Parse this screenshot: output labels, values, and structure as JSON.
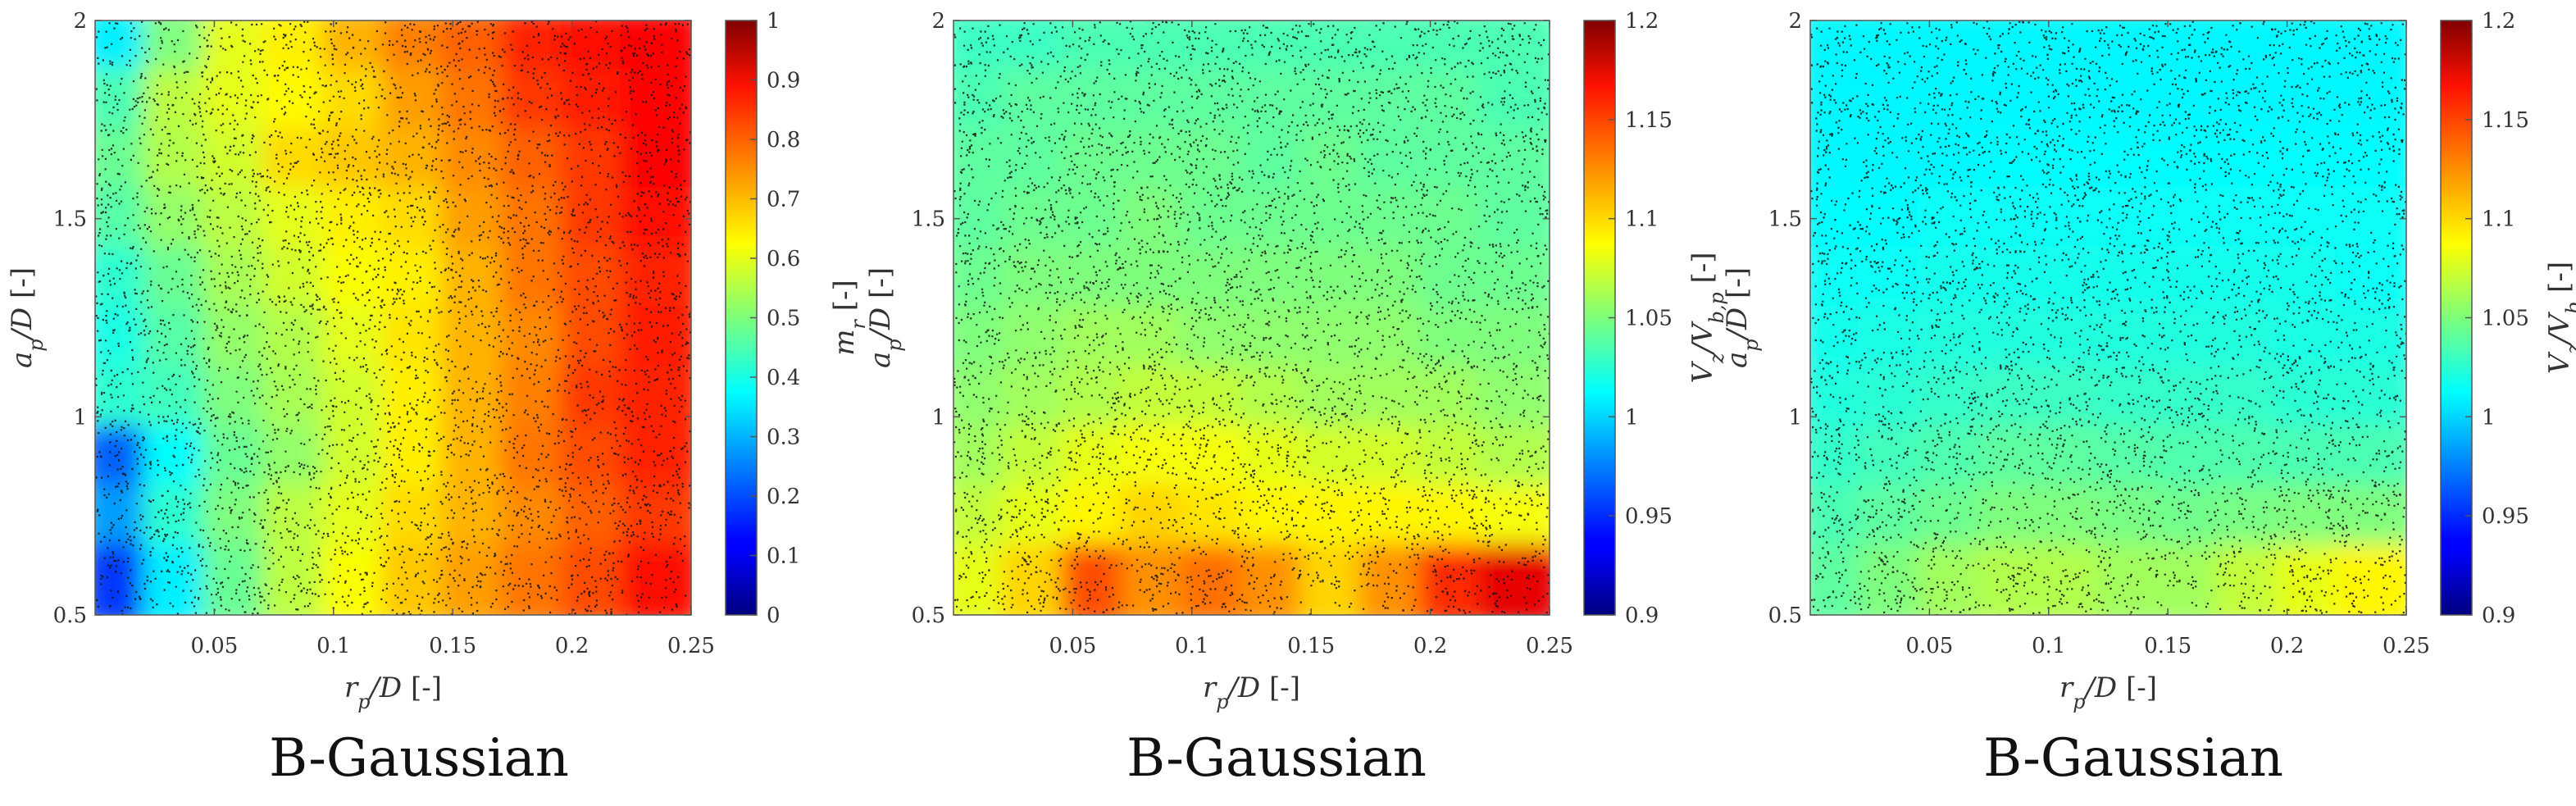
{
  "chart_data": [
    {
      "type": "heatmap",
      "xlabel": "r_p/D [-]",
      "ylabel": "a_p/D [-]",
      "colorbar_label": "m_r [-]",
      "xlim": [
        0,
        0.25
      ],
      "ylim": [
        0.5,
        2
      ],
      "clim": [
        0,
        1
      ],
      "x_ticks": [
        "0.05",
        "0.1",
        "0.15",
        "0.2",
        "0.25"
      ],
      "y_ticks": [
        "0.5",
        "1",
        "1.5",
        "2"
      ],
      "colorbar_ticks": [
        "0",
        "0.1",
        "0.2",
        "0.3",
        "0.4",
        "0.5",
        "0.6",
        "0.7",
        "0.8",
        "0.9",
        "1"
      ],
      "colormap": "jet",
      "overlay": "scattered black sample points",
      "grid_x": [
        0.0125,
        0.0375,
        0.0625,
        0.0875,
        0.1125,
        0.1375,
        0.1625,
        0.1875,
        0.2125,
        0.2375
      ],
      "grid_y": [
        1.925,
        1.775,
        1.625,
        1.475,
        1.325,
        1.175,
        1.025,
        0.875,
        0.725,
        0.575
      ],
      "values": [
        [
          0.36,
          0.5,
          0.6,
          0.64,
          0.7,
          0.75,
          0.78,
          0.84,
          0.86,
          0.88
        ],
        [
          0.45,
          0.56,
          0.6,
          0.63,
          0.66,
          0.72,
          0.76,
          0.82,
          0.85,
          0.87
        ],
        [
          0.48,
          0.55,
          0.58,
          0.66,
          0.68,
          0.7,
          0.74,
          0.78,
          0.82,
          0.88
        ],
        [
          0.46,
          0.52,
          0.56,
          0.6,
          0.64,
          0.66,
          0.72,
          0.76,
          0.82,
          0.86
        ],
        [
          0.42,
          0.48,
          0.54,
          0.58,
          0.62,
          0.64,
          0.7,
          0.76,
          0.8,
          0.84
        ],
        [
          0.4,
          0.46,
          0.52,
          0.55,
          0.6,
          0.65,
          0.7,
          0.74,
          0.8,
          0.85
        ],
        [
          0.42,
          0.44,
          0.5,
          0.54,
          0.58,
          0.64,
          0.7,
          0.75,
          0.82,
          0.84
        ],
        [
          0.22,
          0.38,
          0.48,
          0.52,
          0.58,
          0.64,
          0.7,
          0.76,
          0.8,
          0.84
        ],
        [
          0.28,
          0.42,
          0.5,
          0.56,
          0.6,
          0.66,
          0.7,
          0.74,
          0.78,
          0.82
        ],
        [
          0.18,
          0.36,
          0.48,
          0.56,
          0.62,
          0.68,
          0.72,
          0.76,
          0.8,
          0.86
        ]
      ],
      "caption": "B-Gaussian"
    },
    {
      "type": "heatmap",
      "xlabel": "r_p/D [-]",
      "ylabel": "a_p/D [-]",
      "colorbar_label": "V_z/V_{b,p} [-]",
      "xlim": [
        0,
        0.25
      ],
      "ylim": [
        0.5,
        2
      ],
      "clim": [
        0.9,
        1.2
      ],
      "x_ticks": [
        "0.05",
        "0.1",
        "0.15",
        "0.2",
        "0.25"
      ],
      "y_ticks": [
        "0.5",
        "1",
        "1.5",
        "2"
      ],
      "colorbar_ticks": [
        "0.9",
        "0.95",
        "1",
        "1.05",
        "1.1",
        "1.15",
        "1.2"
      ],
      "colormap": "jet",
      "overlay": "scattered black sample points",
      "grid_x": [
        0.0125,
        0.0375,
        0.0625,
        0.0875,
        0.1125,
        0.1375,
        0.1625,
        0.1875,
        0.2125,
        0.2375
      ],
      "grid_y": [
        1.925,
        1.775,
        1.625,
        1.475,
        1.325,
        1.175,
        1.025,
        0.875,
        0.725,
        0.575
      ],
      "values": [
        [
          1.03,
          1.03,
          1.035,
          1.035,
          1.035,
          1.035,
          1.035,
          1.035,
          1.035,
          1.035
        ],
        [
          1.035,
          1.04,
          1.04,
          1.04,
          1.04,
          1.04,
          1.04,
          1.04,
          1.04,
          1.035
        ],
        [
          1.04,
          1.04,
          1.045,
          1.045,
          1.045,
          1.04,
          1.045,
          1.04,
          1.04,
          1.04
        ],
        [
          1.04,
          1.045,
          1.045,
          1.05,
          1.045,
          1.045,
          1.045,
          1.045,
          1.045,
          1.04
        ],
        [
          1.045,
          1.05,
          1.05,
          1.05,
          1.05,
          1.05,
          1.05,
          1.05,
          1.045,
          1.045
        ],
        [
          1.05,
          1.055,
          1.06,
          1.06,
          1.055,
          1.055,
          1.055,
          1.055,
          1.05,
          1.05
        ],
        [
          1.055,
          1.06,
          1.065,
          1.07,
          1.07,
          1.065,
          1.06,
          1.06,
          1.06,
          1.055
        ],
        [
          1.06,
          1.07,
          1.08,
          1.085,
          1.085,
          1.08,
          1.075,
          1.075,
          1.07,
          1.065
        ],
        [
          1.07,
          1.08,
          1.09,
          1.1,
          1.095,
          1.09,
          1.09,
          1.09,
          1.09,
          1.085
        ],
        [
          1.08,
          1.1,
          1.14,
          1.12,
          1.13,
          1.12,
          1.1,
          1.12,
          1.15,
          1.17
        ]
      ],
      "caption": "B-Gaussian"
    },
    {
      "type": "heatmap",
      "xlabel": "r_p/D [-]",
      "ylabel": "a_p/D [-]",
      "colorbar_label": "V_z/V_b [-]",
      "xlim": [
        0,
        0.25
      ],
      "ylim": [
        0.5,
        2
      ],
      "clim": [
        0.9,
        1.2
      ],
      "x_ticks": [
        "0.05",
        "0.1",
        "0.15",
        "0.2",
        "0.25"
      ],
      "y_ticks": [
        "0.5",
        "1",
        "1.5",
        "2"
      ],
      "colorbar_ticks": [
        "0.9",
        "0.95",
        "1",
        "1.05",
        "1.1",
        "1.15",
        "1.2"
      ],
      "colormap": "jet",
      "overlay": "scattered black sample points",
      "grid_x": [
        0.0125,
        0.0375,
        0.0625,
        0.0875,
        0.1125,
        0.1375,
        0.1625,
        0.1875,
        0.2125,
        0.2375
      ],
      "grid_y": [
        1.925,
        1.775,
        1.625,
        1.475,
        1.325,
        1.175,
        1.025,
        0.875,
        0.725,
        0.575
      ],
      "values": [
        [
          1.01,
          1.01,
          1.01,
          1.01,
          1.01,
          1.01,
          1.01,
          1.01,
          1.01,
          1.01
        ],
        [
          1.01,
          1.01,
          1.01,
          1.01,
          1.01,
          1.01,
          1.01,
          1.01,
          1.01,
          1.01
        ],
        [
          1.01,
          1.01,
          1.01,
          1.012,
          1.012,
          1.012,
          1.012,
          1.012,
          1.012,
          1.012
        ],
        [
          1.012,
          1.012,
          1.015,
          1.015,
          1.015,
          1.015,
          1.015,
          1.015,
          1.015,
          1.015
        ],
        [
          1.015,
          1.015,
          1.018,
          1.018,
          1.018,
          1.018,
          1.018,
          1.018,
          1.018,
          1.015
        ],
        [
          1.018,
          1.02,
          1.022,
          1.022,
          1.022,
          1.022,
          1.022,
          1.022,
          1.02,
          1.02
        ],
        [
          1.022,
          1.025,
          1.028,
          1.03,
          1.03,
          1.028,
          1.028,
          1.028,
          1.025,
          1.025
        ],
        [
          1.028,
          1.032,
          1.036,
          1.04,
          1.04,
          1.038,
          1.036,
          1.036,
          1.035,
          1.035
        ],
        [
          1.035,
          1.04,
          1.045,
          1.05,
          1.05,
          1.048,
          1.046,
          1.048,
          1.05,
          1.05
        ],
        [
          1.04,
          1.05,
          1.06,
          1.065,
          1.065,
          1.06,
          1.06,
          1.07,
          1.08,
          1.09
        ]
      ],
      "caption": "B-Gaussian"
    }
  ]
}
